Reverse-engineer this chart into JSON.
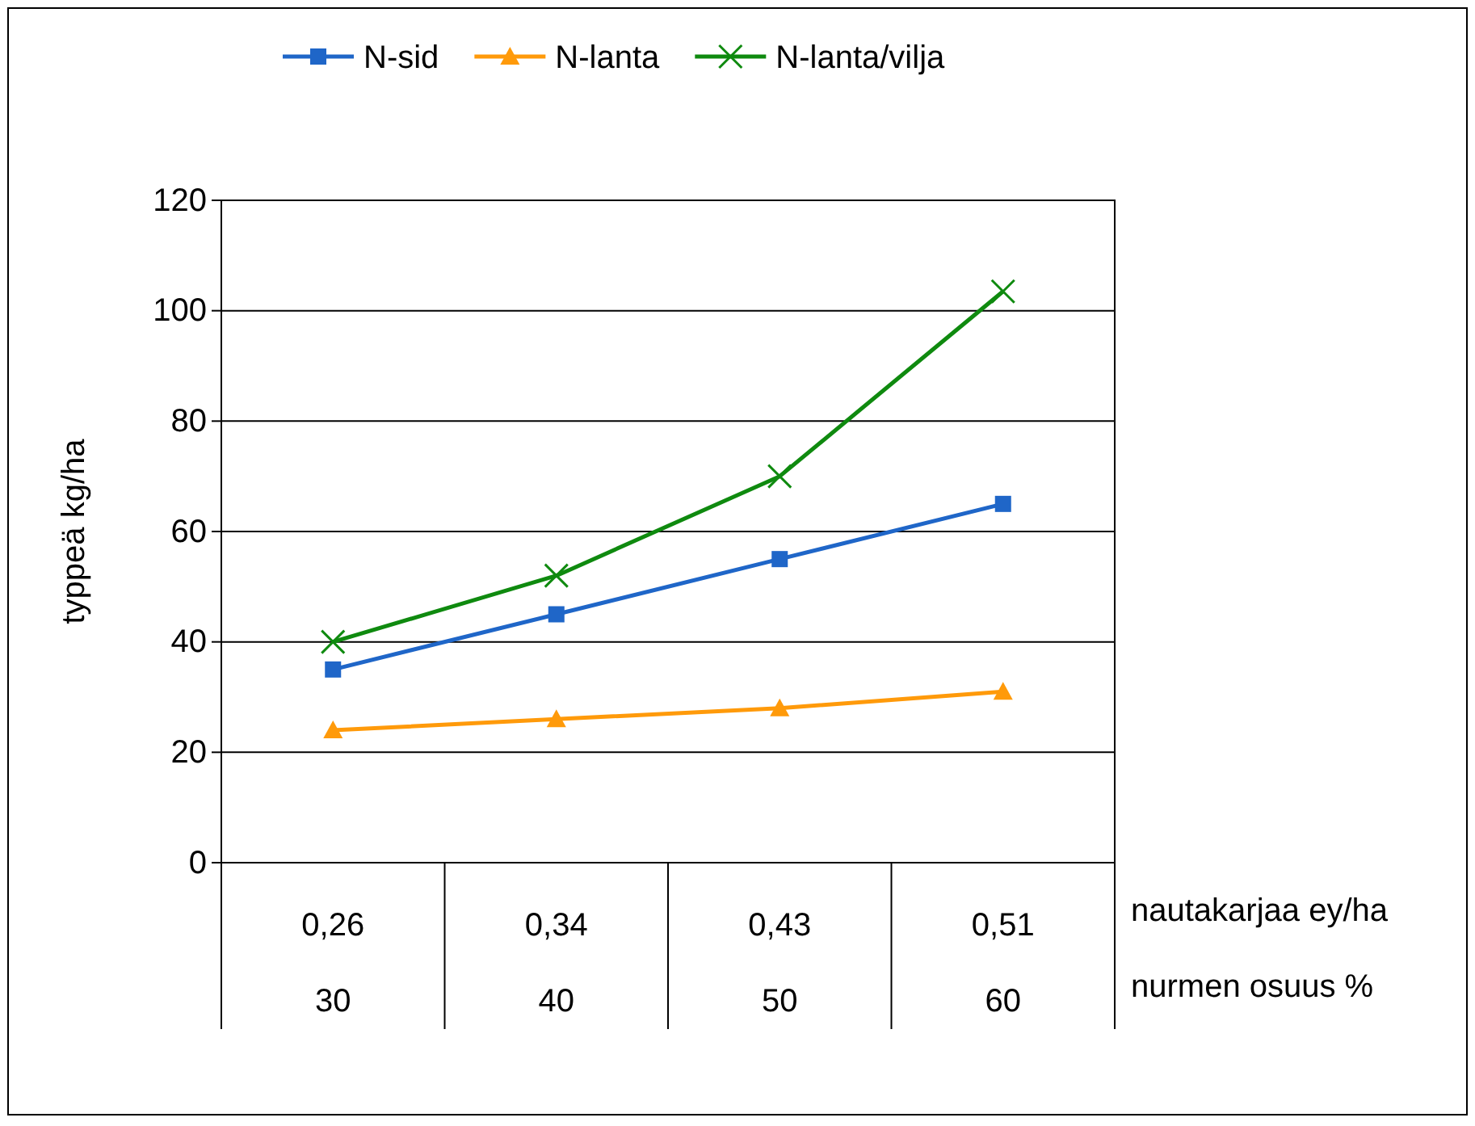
{
  "chart_data": {
    "type": "line",
    "ylabel": "typpeä kg/ha",
    "categories": [
      "0,26\n30",
      "0,34\n40",
      "0,43\n50",
      "0,51\n60"
    ],
    "series": [
      {
        "name": "N-sid",
        "color": "#1f66c8",
        "marker": "square",
        "values": [
          35,
          45,
          55,
          65
        ]
      },
      {
        "name": "N-lanta",
        "color": "#ff9a0a",
        "marker": "triangle",
        "values": [
          24,
          26,
          28,
          31
        ]
      },
      {
        "name": "N-lanta/vilja",
        "color": "#0f8a0f",
        "marker": "cross",
        "values": [
          40,
          52,
          70,
          103.5
        ]
      }
    ],
    "ylim": [
      0,
      120
    ],
    "yticks": [
      0,
      20,
      40,
      60,
      80,
      100,
      120
    ],
    "grid": "y",
    "legend": "top",
    "annotations": [
      "nautakarjaa ey/ha",
      "nurmen osuus %"
    ]
  }
}
